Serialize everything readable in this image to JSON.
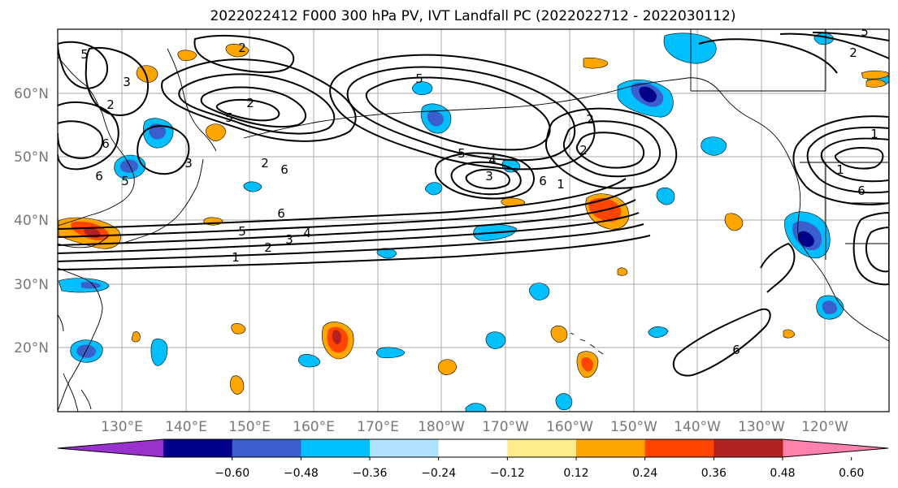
{
  "title": "2022022412 F000 300 hPa PV, IVT Landfall PC (2022022712 - 2022030112)",
  "map": {
    "lon_labels": [
      "130°E",
      "140°E",
      "150°E",
      "160°E",
      "170°E",
      "180°W",
      "170°W",
      "160°W",
      "150°W",
      "140°W",
      "130°W",
      "120°W"
    ],
    "lat_labels": [
      "60°N",
      "50°N",
      "40°N",
      "30°N",
      "20°N"
    ]
  },
  "colorbar": {
    "colors": [
      "#9932CC",
      "#00008B",
      "#3A5FCD",
      "#00BFFF",
      "#B0E2FF",
      "#FFFFFF",
      "#FFEC8B",
      "#FFA500",
      "#FF4500",
      "#B22222",
      "#FF82AB"
    ],
    "tick_labels": [
      "−0.60",
      "−0.48",
      "−0.36",
      "−0.24",
      "−0.12",
      "0.12",
      "0.24",
      "0.36",
      "0.48",
      "0.60"
    ]
  },
  "contour_labels": [
    "1",
    "2",
    "3",
    "4",
    "5",
    "6",
    "5",
    "3",
    "2",
    "6",
    "6",
    "5",
    "5",
    "2",
    "3",
    "2",
    "6",
    "5",
    "4",
    "3",
    "5",
    "2",
    "6",
    "1",
    "2",
    "1",
    "6",
    "2",
    "1",
    "5",
    "6",
    "2"
  ],
  "ivt_colors": {
    "neg_light": "#B0E2FF",
    "neg_mid": "#00BFFF",
    "neg_strong": "#3A5FCD",
    "neg_extreme": "#00008B",
    "pos_light": "#FFEC8B",
    "pos_mid": "#FFA500",
    "pos_strong": "#FF4500",
    "pos_extreme": "#B22222"
  }
}
